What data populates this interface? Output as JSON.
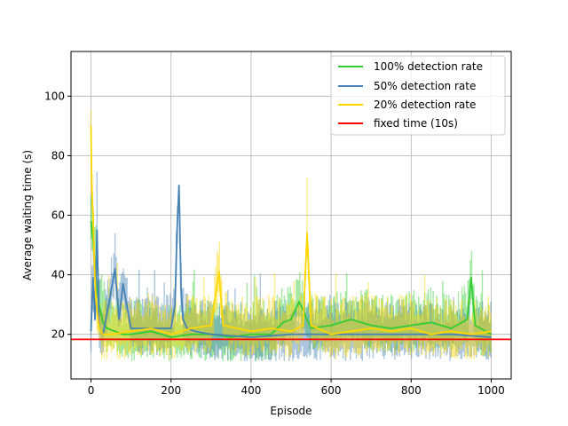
{
  "chart_data": {
    "type": "line",
    "xlabel": "Episode",
    "ylabel": "Average waiting time (s)",
    "xlim": [
      -50,
      1050
    ],
    "ylim": [
      5,
      115
    ],
    "xticks": [
      0,
      200,
      400,
      600,
      800,
      1000
    ],
    "yticks": [
      20,
      40,
      60,
      80,
      100
    ],
    "grid": true,
    "legend_position": "top-right",
    "series": [
      {
        "name": "100% detection rate",
        "color": "#33cc33",
        "x": [
          0,
          5,
          10,
          15,
          20,
          30,
          40,
          60,
          80,
          100,
          150,
          200,
          250,
          300,
          350,
          400,
          450,
          480,
          500,
          520,
          550,
          600,
          650,
          700,
          750,
          800,
          850,
          900,
          940,
          950,
          960,
          1000
        ],
        "y": [
          58,
          52,
          42,
          35,
          30,
          24,
          22,
          21,
          20,
          20,
          21,
          19,
          20,
          20,
          19,
          20,
          20,
          24,
          25,
          31,
          22,
          23,
          25,
          23,
          22,
          23,
          24,
          22,
          25,
          39,
          23,
          20
        ]
      },
      {
        "name": "50% detection rate",
        "color": "#4682b4",
        "x": [
          0,
          5,
          10,
          15,
          20,
          30,
          40,
          60,
          70,
          80,
          100,
          150,
          200,
          210,
          215,
          220,
          225,
          230,
          240,
          260,
          300,
          400,
          500,
          600,
          700,
          800,
          900,
          1000
        ],
        "y": [
          21,
          39,
          25,
          55,
          22,
          20,
          27,
          42,
          25,
          37,
          22,
          22,
          22,
          30,
          55,
          70,
          35,
          25,
          22,
          21,
          20,
          19,
          20,
          20,
          20,
          20,
          20,
          19
        ]
      },
      {
        "name": "20% detection rate",
        "color": "#ffd700",
        "x": [
          0,
          2,
          5,
          8,
          12,
          20,
          30,
          50,
          100,
          150,
          200,
          250,
          300,
          320,
          330,
          400,
          450,
          500,
          530,
          540,
          550,
          600,
          650,
          700,
          750,
          800,
          850,
          900,
          950,
          1000
        ],
        "y": [
          90,
          70,
          60,
          45,
          32,
          22,
          20,
          20,
          21,
          22,
          20,
          22,
          23,
          41,
          23,
          21,
          22,
          21,
          23,
          54,
          23,
          20,
          21,
          22,
          21,
          22,
          20,
          21,
          20,
          21
        ]
      },
      {
        "name": "fixed time (10s)",
        "color": "#ff0000",
        "x": [
          -50,
          1050
        ],
        "y": [
          18.3,
          18.3
        ]
      }
    ]
  }
}
